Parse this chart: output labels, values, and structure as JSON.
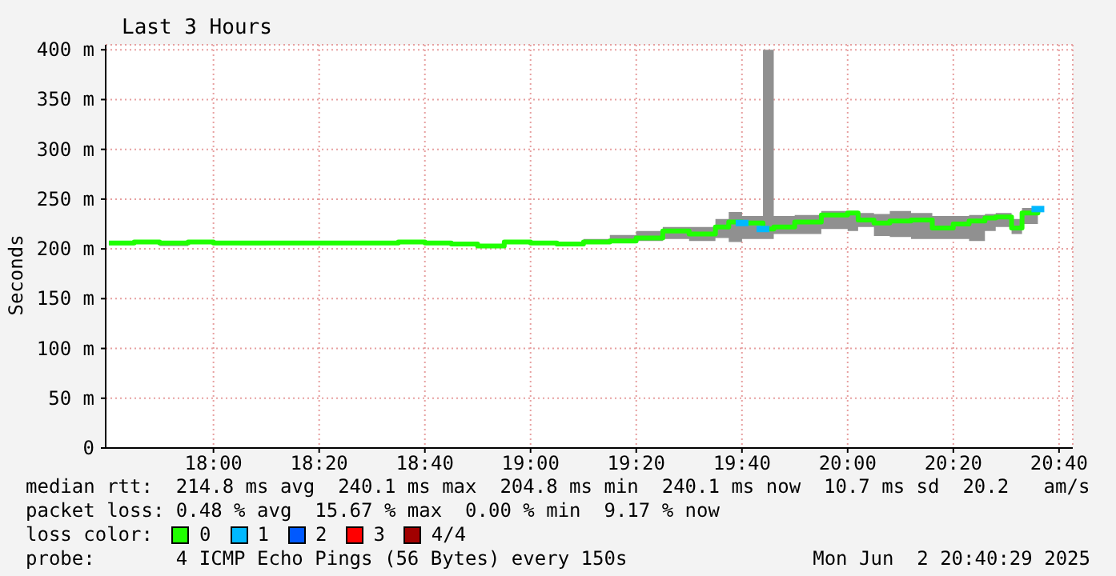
{
  "chart_data": {
    "type": "step",
    "title": "Last 3 Hours",
    "ylabel": "Seconds",
    "x": [
      17.67,
      17.75,
      17.83,
      17.92,
      18.0,
      18.083,
      18.167,
      18.25,
      18.333,
      18.417,
      18.5,
      18.583,
      18.667,
      18.75,
      18.833,
      18.917,
      19.0,
      19.083,
      19.167,
      19.25,
      19.333,
      19.417,
      19.5,
      19.583,
      19.625,
      19.667,
      19.733,
      19.767,
      19.833,
      19.917,
      20.0,
      20.033,
      20.083,
      20.133,
      20.2,
      20.267,
      20.333,
      20.383,
      20.433,
      20.467,
      20.517,
      20.55,
      20.6
    ],
    "series": [
      {
        "name": "0",
        "color": "#20ff00",
        "values": [
          206,
          207,
          206,
          207,
          206,
          206,
          206,
          206,
          206,
          206,
          206,
          207,
          206,
          205,
          203,
          207,
          206,
          205,
          207,
          208,
          211,
          218,
          215,
          222,
          227,
          226,
          220,
          222,
          227,
          234,
          236,
          229,
          226,
          228,
          229,
          221,
          225,
          228,
          231,
          232,
          221,
          236,
          240
        ],
        "lower": [
          204,
          205,
          203,
          205,
          205,
          204,
          205,
          205,
          205,
          205,
          205,
          206,
          205,
          204,
          202,
          206,
          205,
          204,
          205,
          206,
          208,
          210,
          208,
          211,
          207,
          210,
          210,
          215,
          215,
          220,
          218,
          222,
          213,
          212,
          210,
          210,
          210,
          208,
          218,
          222,
          215,
          225,
          222
        ],
        "upper": [
          208,
          209,
          208,
          209,
          208,
          207,
          208,
          207,
          208,
          207,
          208,
          209,
          208,
          207,
          205,
          209,
          208,
          207,
          210,
          214,
          218,
          222,
          222,
          230,
          237,
          233,
          400,
          233,
          234,
          238,
          238,
          236,
          235,
          238,
          236,
          233,
          233,
          234,
          235,
          236,
          230,
          241,
          241
        ]
      },
      {
        "name": "1",
        "color": "#00b8ff",
        "type": "scatter",
        "marker": "square",
        "x": [
          19.667,
          19.733,
          20.6
        ],
        "values": [
          226,
          220,
          240
        ]
      },
      {
        "name": "2",
        "color": "#0059ff",
        "type": "scatter",
        "values": [
          null,
          null,
          null,
          null,
          null,
          null,
          null,
          null,
          null,
          null,
          null,
          null,
          null,
          null,
          null,
          null,
          null,
          null,
          null,
          null,
          null,
          null,
          null,
          null,
          null,
          null,
          null,
          null,
          null,
          null,
          null,
          null,
          null,
          null,
          null,
          null,
          null,
          null,
          null,
          null,
          null,
          null,
          null
        ]
      },
      {
        "name": "3",
        "color": "#ff0000",
        "type": "scatter",
        "values": [
          null,
          null,
          null,
          null,
          null,
          null,
          null,
          null,
          null,
          null,
          null,
          null,
          null,
          null,
          null,
          null,
          null,
          null,
          null,
          null,
          null,
          null,
          null,
          null,
          null,
          null,
          null,
          null,
          null,
          null,
          null,
          null,
          null,
          null,
          null,
          null,
          null,
          null,
          null,
          null,
          null,
          null,
          null
        ]
      },
      {
        "name": "4/4",
        "color": "#a10000",
        "type": "scatter",
        "values": [
          null,
          null,
          null,
          null,
          null,
          null,
          null,
          null,
          null,
          null,
          null,
          null,
          null,
          null,
          null,
          null,
          null,
          null,
          null,
          null,
          null,
          null,
          null,
          null,
          null,
          null,
          null,
          null,
          null,
          null,
          null,
          null,
          null,
          null,
          null,
          null,
          null,
          null,
          null,
          null,
          null,
          null,
          null
        ]
      }
    ],
    "xlim": [
      17.66,
      20.71
    ],
    "xticks": [
      {
        "value": 18,
        "label": "18:00"
      },
      {
        "value": 18.3333,
        "label": "18:20"
      },
      {
        "value": 18.6667,
        "label": "18:40"
      },
      {
        "value": 19,
        "label": "19:00"
      },
      {
        "value": 19.3333,
        "label": "19:20"
      },
      {
        "value": 19.6667,
        "label": "19:40"
      },
      {
        "value": 20,
        "label": "20:00"
      },
      {
        "value": 20.3333,
        "label": "20:20"
      },
      {
        "value": 20.6667,
        "label": "20:40"
      }
    ],
    "ylim": [
      0,
      405
    ],
    "yticks": [
      0,
      {
        "value": 50,
        "label": "50 m"
      },
      {
        "value": 100,
        "label": "100 m"
      },
      {
        "value": 150,
        "label": "150 m"
      },
      {
        "value": 200,
        "label": "200 m"
      },
      {
        "value": 250,
        "label": "250 m"
      },
      {
        "value": 300,
        "label": "300 m"
      },
      {
        "value": 350,
        "label": "350 m"
      },
      {
        "value": 400,
        "label": "400 m"
      }
    ],
    "grid": true,
    "legend": "bottom",
    "line_style": "solid",
    "annotations": [
      "median rtt:  214.8 ms avg  240.1 ms max  204.8 ms min  240.1 ms now  10.7 ms sd  20.2   am/s",
      "packet loss: 0.48 % avg  15.67 % max  0.00 % min  9.17 % now",
      "loss color:",
      "probe:       4 ICMP Echo Pings (56 Bytes) every 150s",
      "Mon Jun  2 20:40:29 2025"
    ]
  }
}
